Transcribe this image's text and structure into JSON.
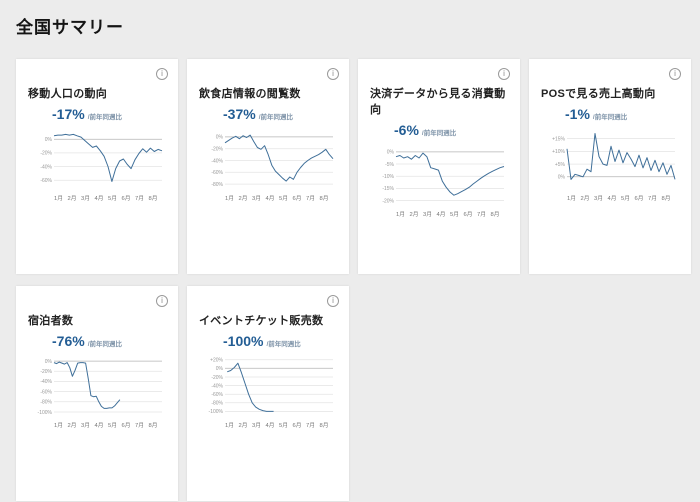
{
  "page": {
    "title": "全国サマリー"
  },
  "theme": {
    "accent_value_color": "#235d94",
    "suffix_color": "#7e93a8",
    "line_color": "#3f6f99",
    "grid_line_color": "#e4e4e4",
    "zero_line_color": "#b5b5b5",
    "ytick_color": "#999999",
    "xtick_color": "#777777",
    "page_bg": "#ececec",
    "card_bg": "#ffffff"
  },
  "cards": [
    {
      "title": "移動人口の動向",
      "value": "-17%",
      "suffix": "/前年同週比"
    },
    {
      "title": "飲食店情報の閲覧数",
      "value": "-37%",
      "suffix": "/前年同週比"
    },
    {
      "title": "決済データから見る消費動向",
      "value": "-6%",
      "suffix": "/前年同週比"
    },
    {
      "title": "POSで見る売上高動向",
      "value": "-1%",
      "suffix": "/前年同週比"
    },
    {
      "title": "宿泊者数",
      "value": "-76%",
      "suffix": "/前年同週比"
    },
    {
      "title": "イベントチケット販売数",
      "value": "-100%",
      "suffix": "/前年同週比"
    }
  ],
  "chart_data": [
    {
      "type": "line",
      "title": "移動人口の動向",
      "unit": "%",
      "ylim": [
        -70,
        12
      ],
      "yticks": [
        {
          "v": 0,
          "label": "0%"
        },
        {
          "v": -20,
          "label": "-20%"
        },
        {
          "v": -40,
          "label": "-40%"
        },
        {
          "v": -60,
          "label": "-60%"
        }
      ],
      "x_labels": [
        "1月",
        "2月",
        "3月",
        "4月",
        "5月",
        "6月",
        "7月",
        "8月"
      ],
      "x_span": [
        0,
        1
      ],
      "values": [
        5,
        6,
        6,
        7,
        6,
        7,
        5,
        3,
        -2,
        -7,
        -12,
        -10,
        -17,
        -25,
        -40,
        -62,
        -43,
        -32,
        -29,
        -37,
        -43,
        -30,
        -21,
        -14,
        -19,
        -13,
        -18,
        -15,
        -17
      ]
    },
    {
      "type": "line",
      "title": "飲食店情報の閲覧数",
      "unit": "%",
      "ylim": [
        -85,
        10
      ],
      "yticks": [
        {
          "v": 0,
          "label": "0%"
        },
        {
          "v": -20,
          "label": "-20%"
        },
        {
          "v": -40,
          "label": "-40%"
        },
        {
          "v": -60,
          "label": "-60%"
        },
        {
          "v": -80,
          "label": "-80%"
        }
      ],
      "x_labels": [
        "1月",
        "2月",
        "3月",
        "4月",
        "5月",
        "6月",
        "7月",
        "8月"
      ],
      "x_span": [
        0,
        1
      ],
      "values": [
        -10,
        -6,
        -2,
        1,
        -3,
        2,
        -1,
        3,
        -8,
        -18,
        -21,
        -15,
        -30,
        -48,
        -58,
        -64,
        -70,
        -75,
        -68,
        -72,
        -60,
        -52,
        -45,
        -40,
        -36,
        -33,
        -30,
        -26,
        -21,
        -30,
        -37
      ]
    },
    {
      "type": "line",
      "title": "決済データから見る消費動向",
      "unit": "%",
      "ylim": [
        -21,
        2
      ],
      "yticks": [
        {
          "v": 0,
          "label": "0%"
        },
        {
          "v": -5,
          "label": "-5%"
        },
        {
          "v": -10,
          "label": "-10%"
        },
        {
          "v": -15,
          "label": "-15%"
        },
        {
          "v": -20,
          "label": "-20%"
        }
      ],
      "x_labels": [
        "1月",
        "2月",
        "3月",
        "4月",
        "5月",
        "6月",
        "7月",
        "8月"
      ],
      "x_span": [
        0,
        1
      ],
      "values": [
        -2,
        -1.5,
        -2.5,
        -2,
        -3,
        -1.5,
        -2.5,
        -0.5,
        -2,
        -6.5,
        -7,
        -7.5,
        -12,
        -14.5,
        -16.5,
        -17.8,
        -17.2,
        -16.3,
        -15.5,
        -14.5,
        -13.2,
        -12,
        -10.8,
        -9.8,
        -8.8,
        -8,
        -7.2,
        -6.5,
        -6
      ]
    },
    {
      "type": "line",
      "title": "POSで見る売上高動向",
      "unit": "%",
      "ylim": [
        -4,
        18
      ],
      "yticks": [
        {
          "v": 15,
          "label": "+15%"
        },
        {
          "v": 10,
          "label": "+10%"
        },
        {
          "v": 5,
          "label": "+5%"
        },
        {
          "v": 0,
          "label": "0%"
        }
      ],
      "x_labels": [
        "1月",
        "2月",
        "3月",
        "4月",
        "5月",
        "6月",
        "7月",
        "8月"
      ],
      "x_span": [
        0,
        1
      ],
      "values": [
        11,
        -1,
        1,
        0.5,
        0,
        3,
        2,
        17,
        8,
        5,
        4.5,
        12,
        6,
        10.5,
        5.5,
        9.5,
        7,
        4,
        8.5,
        3.5,
        7.5,
        2.5,
        6.5,
        2,
        5.5,
        1,
        4.5,
        -1
      ]
    },
    {
      "type": "line",
      "title": "宿泊者数",
      "unit": "%",
      "ylim": [
        -104,
        6
      ],
      "yticks": [
        {
          "v": 0,
          "label": "0%"
        },
        {
          "v": -20,
          "label": "-20%"
        },
        {
          "v": -40,
          "label": "-40%"
        },
        {
          "v": -60,
          "label": "-60%"
        },
        {
          "v": -80,
          "label": "-80%"
        },
        {
          "v": -100,
          "label": "-100%"
        }
      ],
      "x_labels": [
        "1月",
        "2月",
        "3月",
        "4月",
        "5月",
        "6月",
        "7月",
        "8月"
      ],
      "x_span": [
        0,
        0.61
      ],
      "values": [
        -3,
        -5,
        -2,
        -4,
        -6,
        -3,
        -13,
        -30,
        -18,
        -4,
        -3,
        -3,
        -4,
        -35,
        -68,
        -70,
        -69,
        -80,
        -89,
        -93,
        -93,
        -92,
        -92,
        -88,
        -82,
        -76
      ]
    },
    {
      "type": "line",
      "title": "イベントチケット販売数",
      "unit": "%",
      "ylim": [
        -106,
        24
      ],
      "yticks": [
        {
          "v": 20,
          "label": "+20%"
        },
        {
          "v": 0,
          "label": "0%"
        },
        {
          "v": -20,
          "label": "-20%"
        },
        {
          "v": -40,
          "label": "-40%"
        },
        {
          "v": -60,
          "label": "-60%"
        },
        {
          "v": -80,
          "label": "-80%"
        },
        {
          "v": -100,
          "label": "-100%"
        }
      ],
      "x_labels": [
        "1月",
        "2月",
        "3月",
        "4月",
        "5月",
        "6月",
        "7月",
        "8月"
      ],
      "x_span": [
        0.02,
        0.45
      ],
      "values": [
        -8,
        -5,
        2,
        12,
        -10,
        -35,
        -60,
        -80,
        -90,
        -95,
        -98,
        -100,
        -100,
        -100
      ]
    }
  ]
}
